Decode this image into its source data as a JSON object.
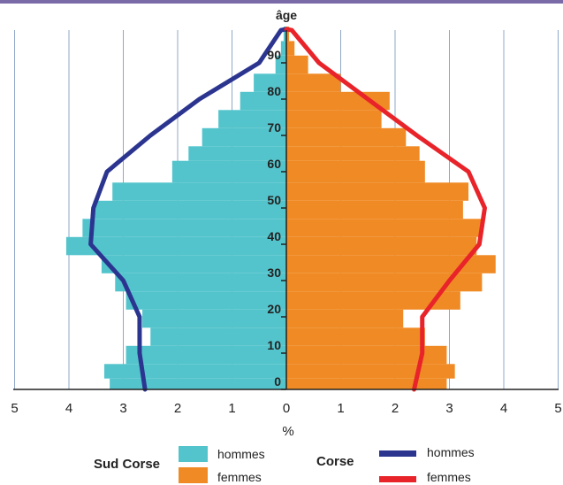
{
  "chart_data": {
    "type": "pyramid",
    "x_unit": "%",
    "y_label": "âge",
    "x_ticks": [
      5,
      4,
      3,
      2,
      1,
      0,
      1,
      2,
      3,
      4,
      5
    ],
    "x_tick_values": [
      -5,
      -4,
      -3,
      -2,
      -1,
      0,
      1,
      2,
      3,
      4,
      5
    ],
    "y_ticks": [
      0,
      10,
      20,
      30,
      40,
      50,
      60,
      70,
      80,
      90
    ],
    "xlim": [
      -5,
      5
    ],
    "ylim": [
      0,
      100
    ],
    "grid": "vertical",
    "bar_ages": [
      [
        0,
        3
      ],
      [
        3,
        7
      ],
      [
        7,
        12
      ],
      [
        12,
        17
      ],
      [
        17,
        22
      ],
      [
        22,
        27
      ],
      [
        27,
        32
      ],
      [
        32,
        37
      ],
      [
        37,
        42
      ],
      [
        42,
        47
      ],
      [
        47,
        52
      ],
      [
        52,
        57
      ],
      [
        57,
        63
      ],
      [
        63,
        67
      ],
      [
        67,
        72
      ],
      [
        72,
        77
      ],
      [
        77,
        82
      ],
      [
        82,
        87
      ],
      [
        87,
        92
      ],
      [
        92,
        96
      ],
      [
        96,
        100
      ]
    ],
    "series": [
      {
        "name": "hommes",
        "group": "Sud Corse",
        "kind": "bars",
        "side": "left",
        "color": "#54c4cc",
        "values": [
          3.25,
          3.35,
          2.95,
          2.5,
          2.65,
          2.95,
          3.15,
          3.4,
          4.05,
          3.75,
          3.55,
          3.2,
          2.1,
          1.8,
          1.55,
          1.25,
          0.85,
          0.6,
          0.2,
          0.1,
          0.05
        ]
      },
      {
        "name": "femmes",
        "group": "Sud Corse",
        "kind": "bars",
        "side": "right",
        "color": "#f08a24",
        "values": [
          2.95,
          3.1,
          2.95,
          2.55,
          2.15,
          3.2,
          3.6,
          3.85,
          3.5,
          3.6,
          3.25,
          3.35,
          2.55,
          2.45,
          2.2,
          1.75,
          1.9,
          1.0,
          0.4,
          0.15,
          0.05
        ]
      },
      {
        "name": "hommes",
        "group": "Corse",
        "kind": "line",
        "side": "left",
        "color": "#2b3590",
        "points": [
          [
            0,
            2.6
          ],
          [
            10,
            2.7
          ],
          [
            20,
            2.7
          ],
          [
            30,
            3.0
          ],
          [
            40,
            3.6
          ],
          [
            50,
            3.55
          ],
          [
            60,
            3.3
          ],
          [
            70,
            2.5
          ],
          [
            80,
            1.6
          ],
          [
            90,
            0.5
          ],
          [
            99,
            0.1
          ]
        ]
      },
      {
        "name": "femmes",
        "group": "Corse",
        "kind": "line",
        "side": "right",
        "color": "#e8232a",
        "points": [
          [
            0,
            2.35
          ],
          [
            10,
            2.5
          ],
          [
            20,
            2.5
          ],
          [
            30,
            3.0
          ],
          [
            40,
            3.55
          ],
          [
            50,
            3.65
          ],
          [
            60,
            3.35
          ],
          [
            70,
            2.4
          ],
          [
            80,
            1.5
          ],
          [
            90,
            0.6
          ],
          [
            99,
            0.1
          ]
        ]
      }
    ]
  },
  "legend": {
    "sud_corse_label": "Sud Corse",
    "corse_label": "Corse",
    "hommes_label": "hommes",
    "femmes_label": "femmes"
  },
  "colors": {
    "grid": "#8fa8c8",
    "axis": "#222222",
    "top_band": "#7a6aa8"
  }
}
